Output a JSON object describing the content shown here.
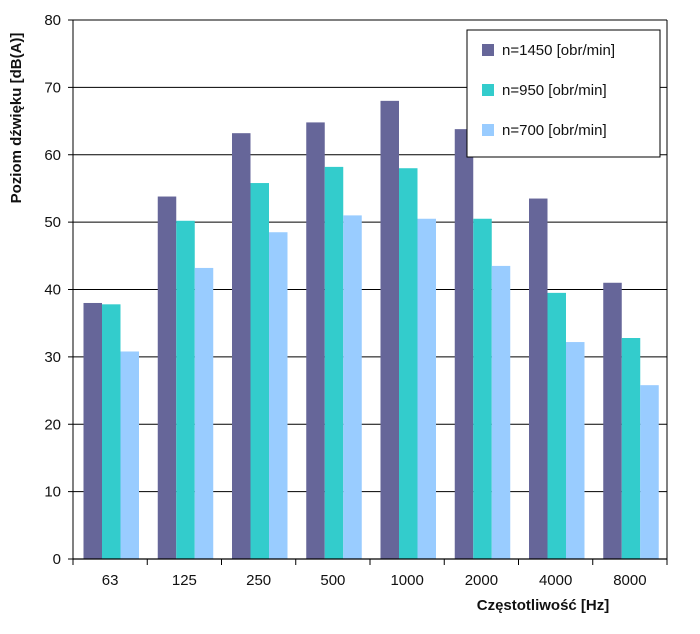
{
  "chart_data": {
    "type": "bar",
    "title": "",
    "xlabel": "Częstotliwość [Hz]",
    "ylabel": "Poziom dźwięku [dB(A)]",
    "ylim": [
      0,
      80
    ],
    "yticks": [
      0,
      10,
      20,
      30,
      40,
      50,
      60,
      70,
      80
    ],
    "grid": true,
    "legend_position": "top-right",
    "categories": [
      "63",
      "125",
      "250",
      "500",
      "1000",
      "2000",
      "4000",
      "8000"
    ],
    "series": [
      {
        "name": "n=1450 [obr/min]",
        "color": "#666699",
        "values": [
          38,
          53.8,
          63.2,
          64.8,
          68,
          63.8,
          53.5,
          41
        ]
      },
      {
        "name": "n=950 [obr/min]",
        "color": "#33cccc",
        "values": [
          37.8,
          50.2,
          55.8,
          58.2,
          58,
          50.5,
          39.5,
          32.8
        ]
      },
      {
        "name": "n=700 [obr/min]",
        "color": "#99ccff",
        "values": [
          30.8,
          43.2,
          48.5,
          51,
          50.5,
          43.5,
          32.2,
          25.8
        ]
      }
    ]
  }
}
